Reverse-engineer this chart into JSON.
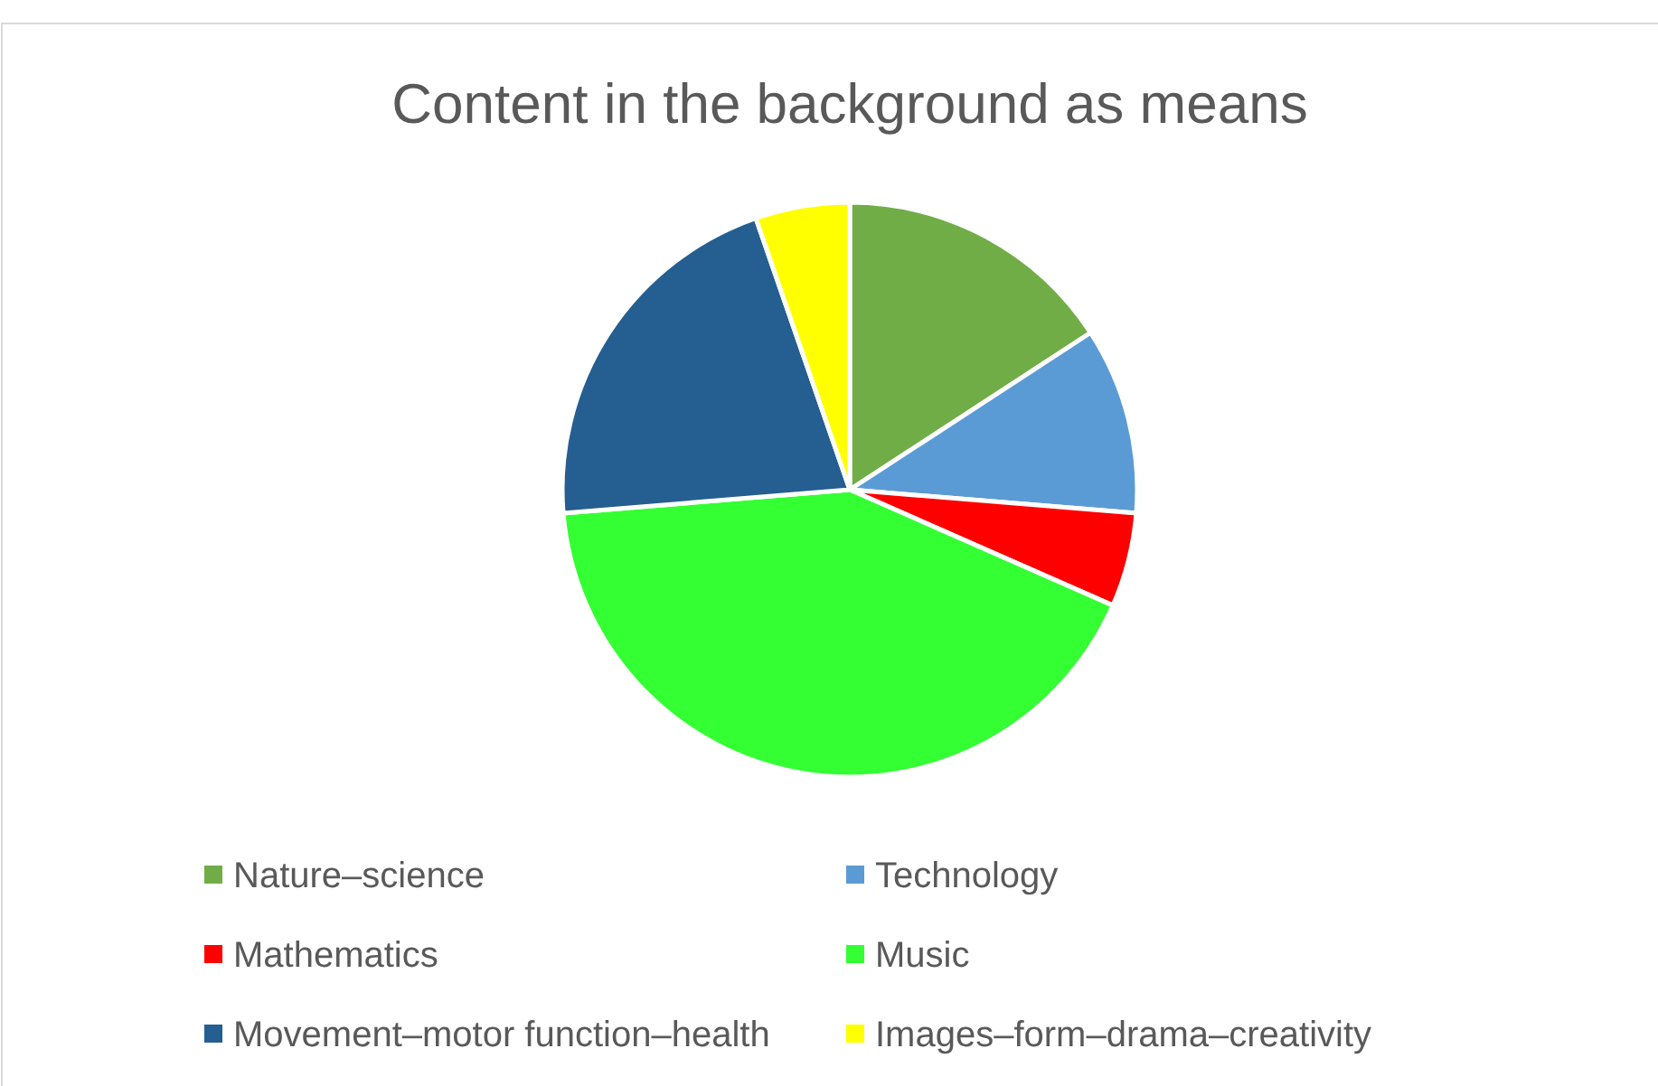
{
  "chart_data": {
    "type": "pie",
    "title": "Content in the background as means",
    "categories": [
      "Nature–science",
      "Technology",
      "Mathematics",
      "Music",
      "Movement–motor function–health",
      "Images–form–drama–creativity"
    ],
    "values": [
      15.8,
      10.5,
      5.3,
      42.1,
      21.0,
      5.3
    ],
    "colors": [
      "#70ad47",
      "#5b9bd5",
      "#ff0000",
      "#33ff33",
      "#255e91",
      "#ffff00"
    ],
    "legend": "bottom"
  }
}
